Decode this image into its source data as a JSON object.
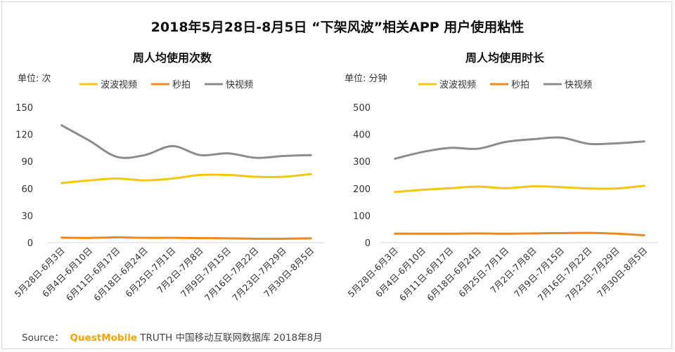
{
  "title": "2018年5月28日-8月5日 “下架风波”相关APP 用户使用粘性",
  "source": {
    "label": "Source：",
    "brand": "QuestMobile",
    "text": "TRUTH 中国移动互联网数据库 2018年8月"
  },
  "colors": {
    "bobo": "#f2c80f",
    "miaopai": "#ee8a1c",
    "kuai": "#8c8c8c",
    "axis": "#d0d0d0",
    "text": "#333333"
  },
  "chart_data": [
    {
      "type": "line",
      "title": "周人均使用次数",
      "unit_label": "单位: 次",
      "ylim": [
        0,
        150
      ],
      "yticks": [
        0,
        30,
        60,
        90,
        120,
        150
      ],
      "categories": [
        "5月28日-6月3日",
        "6月4日-6月10日",
        "6月11日-6月17日",
        "6月18日-6月24日",
        "6月25日-7月1日",
        "7月2日-7月8日",
        "7月9日-7月15日",
        "7月16日-7月22日",
        "7月23日-7月29日",
        "7月30日-8月5日"
      ],
      "series": [
        {
          "name": "波波视频",
          "key": "bobo",
          "values": [
            66,
            69,
            71,
            69,
            71,
            75,
            75,
            73,
            73,
            76
          ]
        },
        {
          "name": "秒拍",
          "key": "miaopai",
          "values": [
            5.5,
            5.2,
            5.8,
            5.3,
            5.3,
            5.0,
            4.8,
            4.3,
            4.3,
            4.8
          ]
        },
        {
          "name": "快视频",
          "key": "kuai",
          "values": [
            130,
            113,
            95,
            97,
            107,
            97,
            99,
            94,
            96,
            97
          ]
        }
      ]
    },
    {
      "type": "line",
      "title": "周人均使用时长",
      "unit_label": "单位: 分钟",
      "ylim": [
        0,
        500
      ],
      "yticks": [
        0,
        100,
        200,
        300,
        400,
        500
      ],
      "categories": [
        "5月28日-6月3日",
        "6月4日-6月10日",
        "6月11日-6月17日",
        "6月18日-6月24日",
        "6月25日-7月1日",
        "7月2日-7月8日",
        "7月9日-7月15日",
        "7月16日-7月22日",
        "7月23日-7月29日",
        "7月30日-8月5日"
      ],
      "series": [
        {
          "name": "波波视频",
          "key": "bobo",
          "values": [
            187,
            195,
            201,
            207,
            201,
            208,
            205,
            200,
            200,
            210
          ]
        },
        {
          "name": "秒拍",
          "key": "miaopai",
          "values": [
            33,
            33,
            33,
            34,
            33,
            34,
            35,
            36,
            33,
            27
          ]
        },
        {
          "name": "快视频",
          "key": "kuai",
          "values": [
            310,
            335,
            350,
            347,
            372,
            382,
            388,
            365,
            367,
            374
          ]
        }
      ]
    }
  ]
}
